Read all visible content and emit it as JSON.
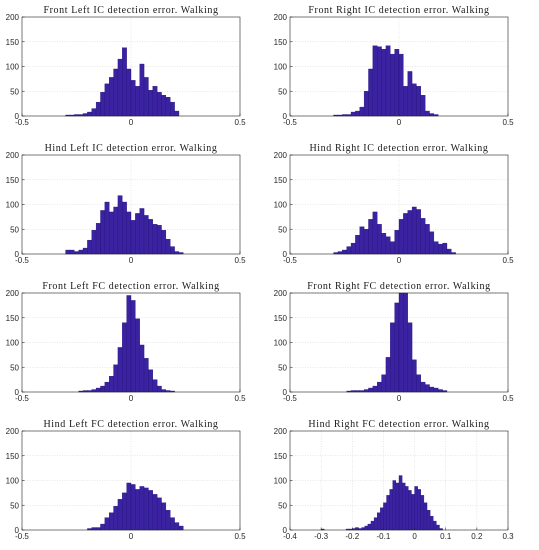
{
  "colors": {
    "bar_fill": "#3b22a0",
    "bar_edge": "#20117a",
    "grid": "#cfcfcf"
  },
  "chart_data": [
    {
      "type": "bar",
      "title": "Front Left IC detection error. Walking",
      "xlim": [
        -0.5,
        0.5
      ],
      "ylim": [
        0,
        200
      ],
      "xticks": [
        "-0.5",
        "0",
        "0.5"
      ],
      "yticks": [
        "0",
        "50",
        "100",
        "150",
        "200"
      ],
      "grid": true,
      "bin_start": -0.3,
      "bin_width": 0.02,
      "values": [
        2,
        2,
        3,
        3,
        5,
        8,
        15,
        28,
        48,
        65,
        78,
        95,
        115,
        138,
        95,
        72,
        60,
        105,
        78,
        52,
        60,
        48,
        42,
        38,
        28,
        10
      ]
    },
    {
      "type": "bar",
      "title": "Front Right IC detection error. Walking",
      "xlim": [
        -0.5,
        0.5
      ],
      "ylim": [
        0,
        200
      ],
      "xticks": [
        "-0.5",
        "0",
        "0.5"
      ],
      "yticks": [
        "0",
        "50",
        "100",
        "150",
        "200"
      ],
      "grid": true,
      "bin_start": -0.3,
      "bin_width": 0.02,
      "values": [
        2,
        2,
        3,
        3,
        8,
        10,
        18,
        50,
        95,
        142,
        140,
        135,
        142,
        125,
        135,
        125,
        60,
        90,
        65,
        60,
        42,
        10,
        5,
        3
      ]
    },
    {
      "type": "bar",
      "title": "Hind Left IC detection error. Walking",
      "xlim": [
        -0.5,
        0.5
      ],
      "ylim": [
        0,
        200
      ],
      "xticks": [
        "-0.5",
        "0",
        "0.5"
      ],
      "yticks": [
        "0",
        "50",
        "100",
        "150",
        "200"
      ],
      "grid": true,
      "bin_start": -0.3,
      "bin_width": 0.02,
      "values": [
        8,
        8,
        5,
        8,
        12,
        28,
        48,
        62,
        88,
        105,
        85,
        95,
        118,
        105,
        85,
        68,
        82,
        92,
        78,
        70,
        60,
        58,
        48,
        30,
        15,
        5,
        3
      ]
    },
    {
      "type": "bar",
      "title": "Hind Right IC detection error. Walking",
      "xlim": [
        -0.5,
        0.5
      ],
      "ylim": [
        0,
        200
      ],
      "xticks": [
        "-0.5",
        "0",
        "0.5"
      ],
      "yticks": [
        "0",
        "50",
        "100",
        "150",
        "200"
      ],
      "grid": true,
      "bin_start": -0.3,
      "bin_width": 0.02,
      "values": [
        3,
        5,
        8,
        15,
        22,
        38,
        55,
        50,
        70,
        85,
        60,
        42,
        35,
        25,
        48,
        70,
        82,
        88,
        95,
        90,
        72,
        60,
        45,
        25,
        20,
        22,
        10,
        3
      ]
    },
    {
      "type": "bar",
      "title": "Front Left FC detection error. Walking",
      "xlim": [
        -0.5,
        0.5
      ],
      "ylim": [
        0,
        200
      ],
      "xticks": [
        "-0.5",
        "0",
        "0.5"
      ],
      "yticks": [
        "0",
        "50",
        "100",
        "150",
        "200"
      ],
      "grid": true,
      "bin_start": -0.24,
      "bin_width": 0.02,
      "values": [
        2,
        3,
        3,
        5,
        8,
        12,
        20,
        32,
        55,
        90,
        140,
        195,
        185,
        148,
        95,
        68,
        45,
        25,
        12,
        5,
        3,
        2
      ]
    },
    {
      "type": "bar",
      "title": "Front Right FC detection error. Walking",
      "xlim": [
        -0.5,
        0.5
      ],
      "ylim": [
        0,
        200
      ],
      "xticks": [
        "-0.5",
        "0",
        "0.5"
      ],
      "yticks": [
        "0",
        "50",
        "100",
        "150",
        "200"
      ],
      "grid": true,
      "bin_start": -0.24,
      "bin_width": 0.02,
      "values": [
        2,
        3,
        3,
        3,
        5,
        8,
        12,
        20,
        35,
        70,
        140,
        180,
        200,
        200,
        140,
        65,
        35,
        20,
        15,
        10,
        8,
        5,
        3
      ]
    },
    {
      "type": "bar",
      "title": "Hind Left FC detection error. Walking",
      "xlim": [
        -0.5,
        0.5
      ],
      "ylim": [
        0,
        200
      ],
      "xticks": [
        "-0.5",
        "0",
        "0.5"
      ],
      "yticks": [
        "0",
        "50",
        "100",
        "150",
        "200"
      ],
      "grid": true,
      "bin_start": -0.2,
      "bin_width": 0.02,
      "values": [
        3,
        5,
        5,
        12,
        25,
        35,
        48,
        62,
        75,
        95,
        92,
        82,
        88,
        85,
        80,
        72,
        65,
        55,
        40,
        25,
        15,
        8
      ]
    },
    {
      "type": "bar",
      "title": "Hind Right FC detection error. Walking",
      "xlim": [
        -0.4,
        0.3
      ],
      "ylim": [
        0,
        200
      ],
      "xticks": [
        "-0.4",
        "-0.3",
        "-0.2",
        "-0.1",
        "0",
        "0.1",
        "0.2",
        "0.3"
      ],
      "yticks": [
        "0",
        "50",
        "100",
        "150",
        "200"
      ],
      "grid": true,
      "bin_start": -0.3,
      "bin_width": 0.01,
      "values": [
        2,
        0,
        0,
        0,
        0,
        0,
        0,
        0,
        2,
        2,
        3,
        5,
        3,
        5,
        8,
        12,
        18,
        25,
        35,
        45,
        55,
        70,
        82,
        100,
        95,
        110,
        95,
        88,
        80,
        72,
        88,
        82,
        70,
        55,
        40,
        28,
        18,
        10,
        3
      ]
    }
  ]
}
